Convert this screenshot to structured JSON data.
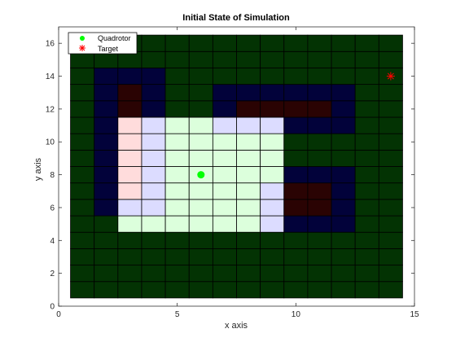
{
  "chart_data": {
    "type": "heatmap",
    "title": "Initial State of Simulation",
    "xlabel": "x axis",
    "ylabel": "y axis",
    "xlim": [
      0,
      15
    ],
    "ylim": [
      0,
      17
    ],
    "xticks": [
      "0",
      "5",
      "10",
      "15"
    ],
    "yticks": [
      "0",
      "2",
      "4",
      "6",
      "8",
      "10",
      "12",
      "14",
      "16"
    ],
    "grid": {
      "x_cells": [
        1,
        14
      ],
      "y_cells": [
        1,
        16
      ]
    },
    "colors": {
      "free": "#033303",
      "obstacle": "#02023a",
      "obstacle_dark_red": "#2a0303",
      "sensed_free": "#dcffdc",
      "sensed_obstacle": "#dcdcff",
      "sensed_red": "#ffdcdc",
      "quadrotor": "#00ff00",
      "target": "#ff0000"
    },
    "cells": {
      "obstacle": [
        [
          2,
          6
        ],
        [
          2,
          7
        ],
        [
          2,
          8
        ],
        [
          2,
          9
        ],
        [
          2,
          10
        ],
        [
          2,
          11
        ],
        [
          2,
          12
        ],
        [
          2,
          13
        ],
        [
          2,
          14
        ],
        [
          3,
          14
        ],
        [
          4,
          14
        ],
        [
          4,
          13
        ],
        [
          4,
          12
        ],
        [
          7,
          12
        ],
        [
          7,
          13
        ],
        [
          8,
          13
        ],
        [
          9,
          13
        ],
        [
          10,
          13
        ],
        [
          11,
          13
        ],
        [
          12,
          13
        ],
        [
          12,
          12
        ],
        [
          12,
          11
        ],
        [
          11,
          11
        ],
        [
          10,
          11
        ],
        [
          10,
          8
        ],
        [
          11,
          8
        ],
        [
          12,
          8
        ],
        [
          12,
          7
        ],
        [
          12,
          6
        ],
        [
          12,
          5
        ],
        [
          11,
          5
        ],
        [
          10,
          5
        ],
        [
          9,
          5
        ]
      ],
      "obstacle_dark_red": [
        [
          3,
          12
        ],
        [
          3,
          13
        ],
        [
          8,
          12
        ],
        [
          9,
          12
        ],
        [
          10,
          12
        ],
        [
          11,
          12
        ],
        [
          10,
          6
        ],
        [
          10,
          7
        ],
        [
          11,
          6
        ],
        [
          11,
          7
        ]
      ],
      "sensed_free": [
        [
          3,
          5
        ],
        [
          4,
          5
        ],
        [
          5,
          5
        ],
        [
          6,
          5
        ],
        [
          7,
          5
        ],
        [
          8,
          5
        ],
        [
          5,
          6
        ],
        [
          6,
          6
        ],
        [
          7,
          6
        ],
        [
          8,
          6
        ],
        [
          5,
          7
        ],
        [
          6,
          7
        ],
        [
          7,
          7
        ],
        [
          8,
          7
        ],
        [
          5,
          8
        ],
        [
          6,
          8
        ],
        [
          7,
          8
        ],
        [
          8,
          8
        ],
        [
          9,
          8
        ],
        [
          5,
          9
        ],
        [
          6,
          9
        ],
        [
          7,
          9
        ],
        [
          8,
          9
        ],
        [
          9,
          9
        ],
        [
          5,
          10
        ],
        [
          6,
          10
        ],
        [
          7,
          10
        ],
        [
          8,
          10
        ],
        [
          9,
          10
        ],
        [
          5,
          11
        ],
        [
          6,
          11
        ]
      ],
      "sensed_obstacle": [
        [
          4,
          6
        ],
        [
          4,
          7
        ],
        [
          4,
          8
        ],
        [
          4,
          9
        ],
        [
          4,
          10
        ],
        [
          4,
          11
        ],
        [
          3,
          6
        ],
        [
          9,
          5
        ],
        [
          9,
          6
        ],
        [
          9,
          7
        ],
        [
          7,
          11
        ],
        [
          8,
          11
        ],
        [
          9,
          11
        ]
      ],
      "sensed_red": [
        [
          3,
          7
        ],
        [
          3,
          8
        ],
        [
          3,
          9
        ],
        [
          3,
          10
        ],
        [
          3,
          11
        ]
      ]
    },
    "series": [
      {
        "name": "Quadrotor",
        "x": [
          6
        ],
        "y": [
          8
        ],
        "marker": "filled-circle"
      },
      {
        "name": "Target",
        "x": [
          14
        ],
        "y": [
          14
        ],
        "marker": "asterisk"
      }
    ],
    "legend": {
      "position": "top-left"
    }
  }
}
